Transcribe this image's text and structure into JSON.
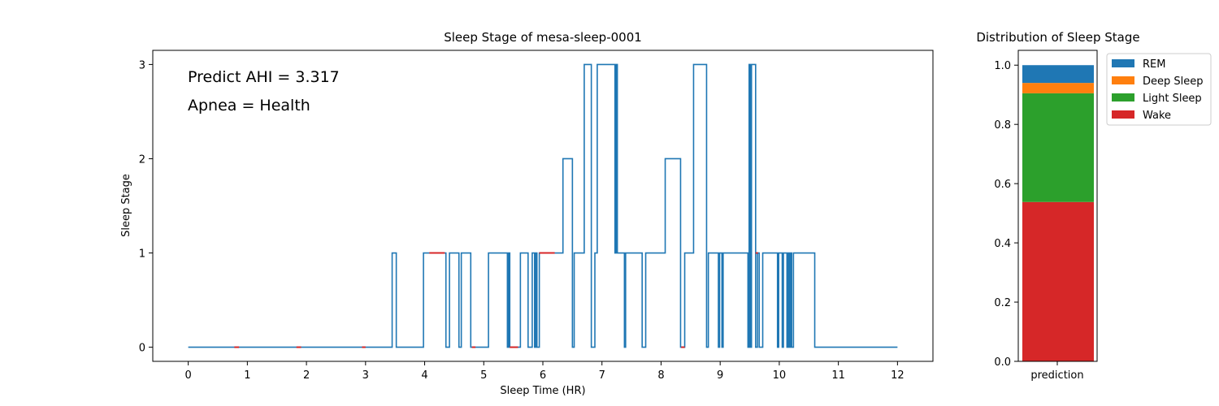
{
  "colors": {
    "rem": "#1f77b4",
    "deep": "#ff7f0e",
    "light": "#2ca02c",
    "wake": "#d62728",
    "hypnogram_line": "#1f77b4",
    "apnea_marker": "#d62728"
  },
  "chart_data": [
    {
      "type": "line",
      "title": "Sleep Stage of mesa-sleep-0001",
      "xlabel": "Sleep Time (HR)",
      "ylabel": "Sleep Stage",
      "xlim": [
        -0.6,
        12.6
      ],
      "ylim": [
        -0.15,
        3.15
      ],
      "xticks": [
        0,
        1,
        2,
        3,
        4,
        5,
        6,
        7,
        8,
        9,
        10,
        11,
        12
      ],
      "yticks": [
        0,
        1,
        2,
        3
      ],
      "grid": false,
      "annotations": [
        "Predict AHI = 3.317",
        "Apnea = Health"
      ],
      "series": [
        {
          "step": true,
          "points": [
            [
              0,
              0
            ],
            [
              3.45,
              1
            ],
            [
              3.52,
              0
            ],
            [
              3.98,
              1
            ],
            [
              4.36,
              0
            ],
            [
              4.42,
              1
            ],
            [
              4.58,
              0
            ],
            [
              4.62,
              1
            ],
            [
              4.78,
              0
            ],
            [
              5.08,
              1
            ],
            [
              5.4,
              0
            ],
            [
              5.42,
              1
            ],
            [
              5.44,
              0
            ],
            [
              5.62,
              1
            ],
            [
              5.75,
              0
            ],
            [
              5.82,
              1
            ],
            [
              5.86,
              0
            ],
            [
              5.88,
              1
            ],
            [
              5.9,
              0
            ],
            [
              5.94,
              1
            ],
            [
              6.34,
              2
            ],
            [
              6.5,
              0
            ],
            [
              6.53,
              1
            ],
            [
              6.7,
              3
            ],
            [
              6.82,
              0
            ],
            [
              6.88,
              1
            ],
            [
              6.92,
              3
            ],
            [
              7.22,
              1
            ],
            [
              7.24,
              3
            ],
            [
              7.26,
              1
            ],
            [
              7.38,
              0
            ],
            [
              7.4,
              1
            ],
            [
              7.68,
              0
            ],
            [
              7.74,
              1
            ],
            [
              8.07,
              2
            ],
            [
              8.33,
              0
            ],
            [
              8.4,
              1
            ],
            [
              8.55,
              3
            ],
            [
              8.77,
              0
            ],
            [
              8.8,
              1
            ],
            [
              8.97,
              0
            ],
            [
              8.99,
              1
            ],
            [
              9.03,
              0
            ],
            [
              9.05,
              1
            ],
            [
              9.47,
              0
            ],
            [
              9.49,
              3
            ],
            [
              9.51,
              0
            ],
            [
              9.53,
              3
            ],
            [
              9.6,
              0
            ],
            [
              9.63,
              1
            ],
            [
              9.66,
              0
            ],
            [
              9.72,
              1
            ],
            [
              9.97,
              0
            ],
            [
              9.99,
              1
            ],
            [
              10.05,
              0
            ],
            [
              10.07,
              1
            ],
            [
              10.13,
              0
            ],
            [
              10.15,
              1
            ],
            [
              10.17,
              0
            ],
            [
              10.19,
              1
            ],
            [
              10.21,
              0
            ],
            [
              10.24,
              1
            ],
            [
              10.6,
              0
            ],
            [
              12.0,
              0
            ]
          ]
        },
        {
          "name_hidden": true,
          "step": false,
          "segments": [
            [
              [
                0.78,
                0
              ],
              [
                0.86,
                0
              ]
            ],
            [
              [
                1.83,
                0
              ],
              [
                1.91,
                0
              ]
            ],
            [
              [
                2.94,
                0
              ],
              [
                3.0,
                0
              ]
            ],
            [
              [
                4.08,
                1
              ],
              [
                4.34,
                1
              ]
            ],
            [
              [
                4.8,
                0
              ],
              [
                4.86,
                0
              ]
            ],
            [
              [
                5.44,
                0
              ],
              [
                5.58,
                0
              ]
            ],
            [
              [
                5.94,
                1
              ],
              [
                6.2,
                1
              ]
            ],
            [
              [
                8.34,
                0
              ],
              [
                8.4,
                0
              ]
            ],
            [
              [
                9.6,
                1
              ],
              [
                9.64,
                1
              ]
            ]
          ]
        }
      ]
    },
    {
      "type": "bar",
      "stacked": true,
      "title": "Distribution of Sleep Stage",
      "categories": [
        "prediction"
      ],
      "ylim": [
        0,
        1.05
      ],
      "yticks": [
        "0.0",
        "0.2",
        "0.4",
        "0.6",
        "0.8",
        "1.0"
      ],
      "ytick_values": [
        0,
        0.2,
        0.4,
        0.6,
        0.8,
        1.0
      ],
      "legend_position": "outside-top-right",
      "series": [
        {
          "name": "Wake",
          "values": [
            0.538
          ],
          "color_key": "wake"
        },
        {
          "name": "Light Sleep",
          "values": [
            0.367
          ],
          "color_key": "light"
        },
        {
          "name": "Deep Sleep",
          "values": [
            0.035
          ],
          "color_key": "deep"
        },
        {
          "name": "REM",
          "values": [
            0.06
          ],
          "color_key": "rem"
        }
      ],
      "legend_order": [
        "REM",
        "Deep Sleep",
        "Light Sleep",
        "Wake"
      ]
    }
  ]
}
